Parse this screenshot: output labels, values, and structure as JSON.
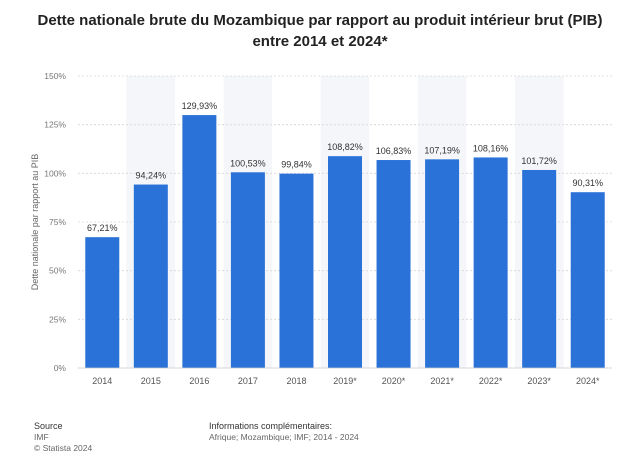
{
  "title": "Dette nationale brute du Mozambique par rapport au produit intérieur brut (PIB) entre 2014 et 2024*",
  "footer": {
    "source_label": "Source",
    "source_lines": [
      "IMF",
      "© Statista 2024"
    ],
    "info_label": "Informations complémentaires:",
    "info_line": "Afrique; Mozambique; IMF; 2014 - 2024"
  },
  "chart_data": {
    "type": "bar",
    "title": "Dette nationale brute du Mozambique par rapport au produit intérieur brut (PIB) entre 2014 et 2024*",
    "ylabel": "Dette nationale par rapport au PIB",
    "xlabel": "",
    "categories": [
      "2014",
      "2015",
      "2016",
      "2017",
      "2018",
      "2019*",
      "2020*",
      "2021*",
      "2022*",
      "2023*",
      "2024*"
    ],
    "values": [
      67.21,
      94.24,
      129.93,
      100.53,
      99.84,
      108.82,
      106.83,
      107.19,
      108.16,
      101.72,
      90.31
    ],
    "value_labels": [
      "67,21%",
      "94,24%",
      "129,93%",
      "100,53%",
      "99,84%",
      "108,82%",
      "106,83%",
      "107,19%",
      "108,16%",
      "101,72%",
      "90,31%"
    ],
    "yticks": [
      0,
      25,
      50,
      75,
      100,
      125,
      150
    ],
    "ytick_labels": [
      "0%",
      "25%",
      "50%",
      "75%",
      "100%",
      "125%",
      "150%"
    ],
    "ylim": [
      0,
      150
    ],
    "grid": true,
    "bar_color": "#2b72d8"
  }
}
